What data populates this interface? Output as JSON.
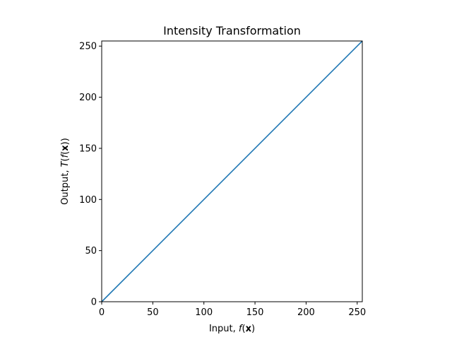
{
  "chart_data": {
    "type": "line",
    "title": "Intensity Transformation",
    "xlabel": {
      "prefix": "Input, ",
      "func": "f",
      "open": "(",
      "var": "x",
      "close": ")"
    },
    "ylabel": {
      "prefix": "Output, ",
      "outer": "T",
      "open1": "(",
      "func": "f",
      "open2": "(",
      "var": "x",
      "close": "))"
    },
    "xlim": [
      0,
      255
    ],
    "ylim": [
      0,
      255
    ],
    "x_ticks": [
      0,
      50,
      100,
      150,
      200,
      250
    ],
    "y_ticks": [
      0,
      50,
      100,
      150,
      200,
      250
    ],
    "grid": false,
    "series": [
      {
        "color": "#1f77b4",
        "x": [
          0,
          255
        ],
        "y": [
          0,
          255
        ]
      }
    ]
  }
}
